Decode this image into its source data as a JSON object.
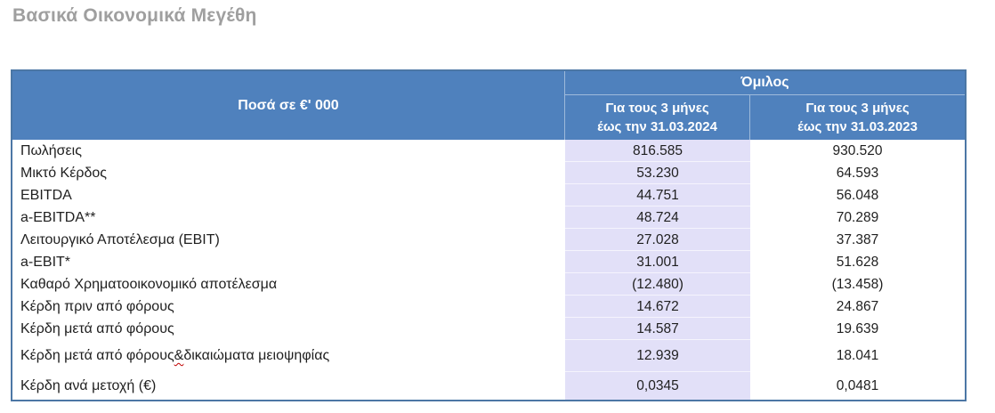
{
  "page": {
    "title": "Βασικά Οικονομικά Μεγέθη"
  },
  "table": {
    "header": {
      "amounts_label": "Ποσά σε €' 000",
      "group_label": "Όμιλος",
      "period_2024_line1": "Για τους 3 μήνες",
      "period_2024_line2": "έως την 31.03.2024",
      "period_2023_line1": "Για τους 3 μήνες",
      "period_2023_line2": "έως την 31.03.2023"
    },
    "rows": [
      {
        "label": "Πωλήσεις",
        "value_2024": "816.585",
        "value_2023": "930.520"
      },
      {
        "label": "Μικτό Κέρδος",
        "value_2024": "53.230",
        "value_2023": "64.593"
      },
      {
        "label": "EBITDA",
        "value_2024": "44.751",
        "value_2023": "56.048"
      },
      {
        "label": "a-EBITDA**",
        "value_2024": "48.724",
        "value_2023": "70.289"
      },
      {
        "label": "Λειτουργικό Αποτέλεσμα (EBIT)",
        "value_2024": "27.028",
        "value_2023": "37.387"
      },
      {
        "label": "a-EBIT*",
        "value_2024": "31.001",
        "value_2023": "51.628"
      },
      {
        "label": "Καθαρό Χρηματοοικονομικό αποτέλεσμα",
        "value_2024": "(12.480)",
        "value_2023": "(13.458)"
      },
      {
        "label": "Κέρδη πριν από φόρους",
        "value_2024": "14.672",
        "value_2023": "24.867"
      },
      {
        "label": "Κέρδη μετά από φόρους",
        "value_2024": "14.587",
        "value_2023": "19.639"
      },
      {
        "label_pre": "Κέρδη μετά από φόρους ",
        "ampersand": "&",
        "label_post": " δικαιώματα μειοψηφίας",
        "value_2024": "12.939",
        "value_2023": "18.041"
      },
      {
        "label": "Κέρδη ανά μετοχή (€)",
        "value_2024": "0,0345",
        "value_2023": "0,0481"
      }
    ],
    "colors": {
      "header_background": "#4f81bd",
      "header_text": "#ffffff",
      "accent_column_background": "#e2e0f8",
      "table_border": "#4c77a5",
      "title_text": "#9f9f9f",
      "body_text": "#1f1f1f",
      "spellcheck_underline": "#c00000"
    }
  }
}
